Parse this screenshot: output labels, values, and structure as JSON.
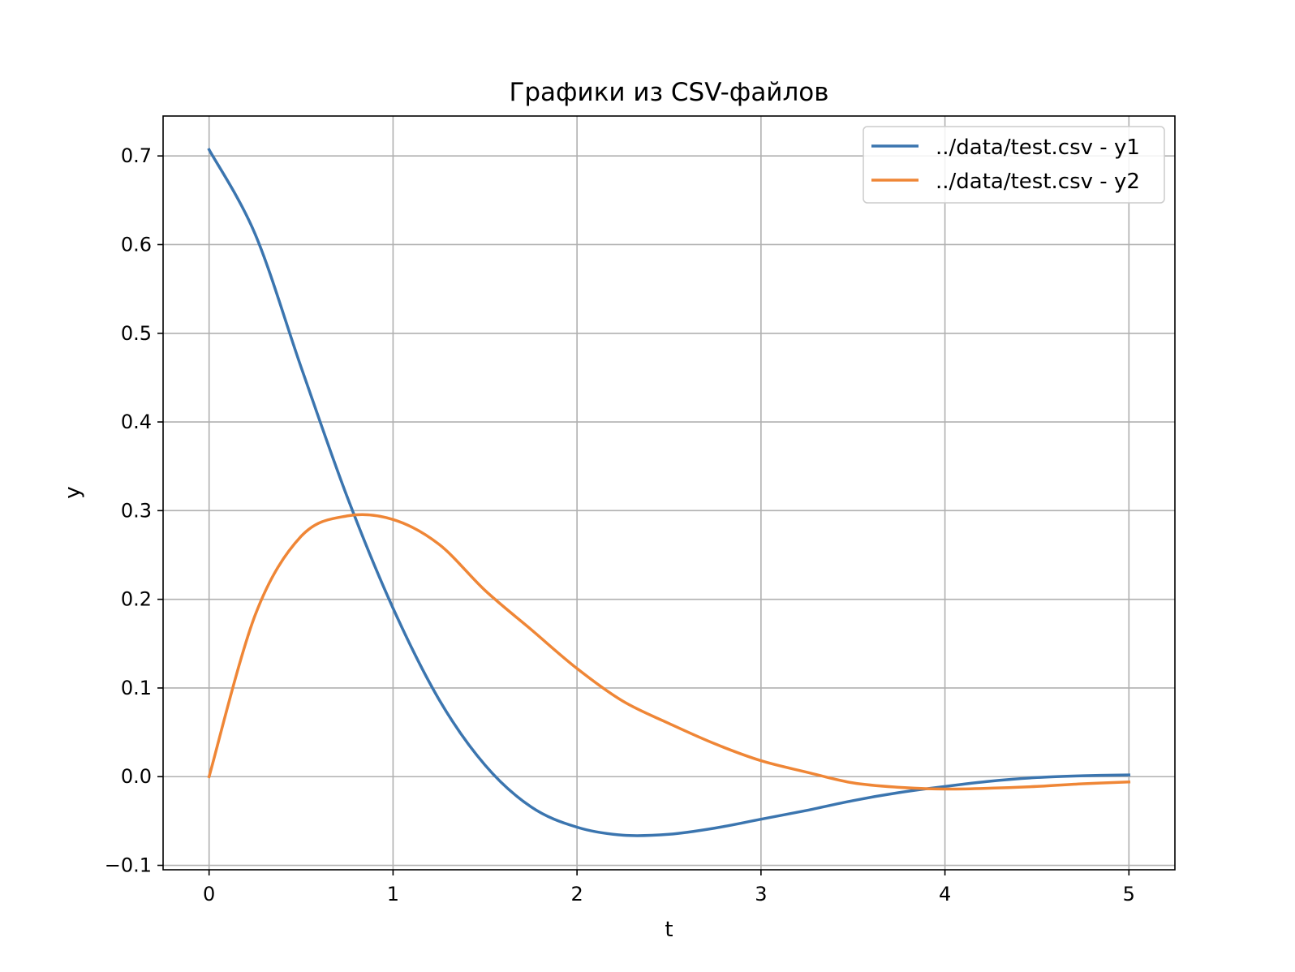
{
  "chart_data": {
    "type": "line",
    "title": "Графики из CSV-файлов",
    "xlabel": "t",
    "ylabel": "y",
    "xlim": [
      -0.25,
      5.25
    ],
    "ylim": [
      -0.105,
      0.745
    ],
    "xticks": [
      0,
      1,
      2,
      3,
      4,
      5
    ],
    "xtick_labels": [
      "0",
      "1",
      "2",
      "3",
      "4",
      "5"
    ],
    "yticks": [
      -0.1,
      0.0,
      0.1,
      0.2,
      0.3,
      0.4,
      0.5,
      0.6,
      0.7
    ],
    "ytick_labels": [
      "−0.1",
      "0.0",
      "0.1",
      "0.2",
      "0.3",
      "0.4",
      "0.5",
      "0.6",
      "0.7"
    ],
    "grid": true,
    "legend_position": "top-right",
    "x": [
      0,
      0.25,
      0.5,
      0.75,
      1,
      1.25,
      1.5,
      1.75,
      2,
      2.25,
      2.5,
      2.75,
      3,
      3.25,
      3.5,
      3.75,
      4,
      4.25,
      4.5,
      4.75,
      5
    ],
    "series": [
      {
        "name": "../data/test.csv - y1",
        "color": "#3b75af",
        "values": [
          0.707,
          0.612,
          0.462,
          0.316,
          0.19,
          0.087,
          0.013,
          -0.034,
          -0.057,
          -0.066,
          -0.065,
          -0.058,
          -0.048,
          -0.038,
          -0.027,
          -0.018,
          -0.011,
          -0.005,
          -0.001,
          0.001,
          0.002
        ]
      },
      {
        "name": "../data/test.csv - y2",
        "color": "#ef8636",
        "values": [
          0.0,
          0.182,
          0.271,
          0.294,
          0.29,
          0.262,
          0.21,
          0.166,
          0.122,
          0.085,
          0.06,
          0.037,
          0.018,
          0.005,
          -0.007,
          -0.012,
          -0.014,
          -0.013,
          -0.011,
          -0.008,
          -0.006
        ]
      }
    ]
  }
}
